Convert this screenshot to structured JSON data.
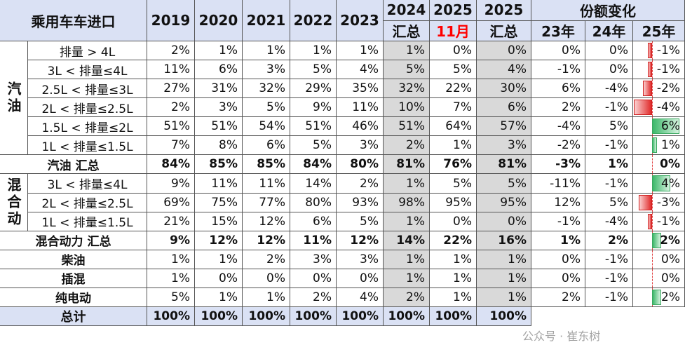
{
  "header": {
    "title": "乘用车车进口",
    "columns": [
      {
        "top": "2019"
      },
      {
        "top": "2020"
      },
      {
        "top": "2021"
      },
      {
        "top": "2022"
      },
      {
        "top": "2023"
      },
      {
        "top": "2024",
        "bottom": "汇总"
      },
      {
        "top": "2025",
        "bottom": "11月",
        "bottom_color": "#ff0000"
      },
      {
        "top": "2025",
        "bottom": "汇总"
      }
    ],
    "share_change": {
      "title": "份额变化",
      "years": [
        "23年",
        "24年",
        "25年"
      ]
    }
  },
  "rows": [
    {
      "group": "汽油",
      "items": [
        {
          "label": "排量 > 4L",
          "cells": [
            "2%",
            "1%",
            "1%",
            "1%",
            "1%",
            "1%",
            "0%",
            "0%",
            "0%",
            "0%",
            "-1%"
          ]
        },
        {
          "label": "3L < 排量≤4L",
          "cells": [
            "11%",
            "6%",
            "3%",
            "5%",
            "4%",
            "5%",
            "5%",
            "4%",
            "-1%",
            "0%",
            "-1%"
          ]
        },
        {
          "label": "2.5L < 排量≤3L",
          "cells": [
            "27%",
            "31%",
            "32%",
            "29%",
            "35%",
            "32%",
            "22%",
            "30%",
            "6%",
            "-4%",
            "-2%"
          ]
        },
        {
          "label": "2L < 排量≤2.5L",
          "cells": [
            "2%",
            "3%",
            "5%",
            "9%",
            "11%",
            "10%",
            "7%",
            "6%",
            "2%",
            "-1%",
            "-4%"
          ]
        },
        {
          "label": "1.5L < 排量≤2L",
          "cells": [
            "51%",
            "51%",
            "54%",
            "51%",
            "46%",
            "51%",
            "64%",
            "57%",
            "-4%",
            "5%",
            "6%"
          ]
        },
        {
          "label": "1L < 排量≤1.5L",
          "cells": [
            "7%",
            "8%",
            "6%",
            "5%",
            "3%",
            "2%",
            "1%",
            "3%",
            "-2%",
            "-1%",
            "1%"
          ]
        }
      ]
    },
    {
      "label": "汽油 汇总",
      "bold": true,
      "cells": [
        "84%",
        "85%",
        "85%",
        "84%",
        "80%",
        "81%",
        "76%",
        "81%",
        "-3%",
        "1%",
        "0%"
      ]
    },
    {
      "group": "混合动",
      "items": [
        {
          "label": "3L < 排量≤4L",
          "cells": [
            "9%",
            "11%",
            "11%",
            "14%",
            "2%",
            "1%",
            "5%",
            "5%",
            "-11%",
            "-1%",
            "4%"
          ]
        },
        {
          "label": "2L < 排量≤2.5L",
          "cells": [
            "69%",
            "75%",
            "77%",
            "80%",
            "93%",
            "98%",
            "95%",
            "95%",
            "12%",
            "5%",
            "-3%"
          ]
        },
        {
          "label": "1L < 排量≤1.5L",
          "cells": [
            "21%",
            "15%",
            "12%",
            "6%",
            "5%",
            "1%",
            "0%",
            "0%",
            "-1%",
            "-4%",
            "-1%"
          ]
        }
      ]
    },
    {
      "label": "混合动力 汇总",
      "bold": true,
      "cells": [
        "9%",
        "12%",
        "12%",
        "11%",
        "12%",
        "14%",
        "22%",
        "16%",
        "1%",
        "2%",
        "2%"
      ]
    },
    {
      "label": "柴油",
      "cells": [
        "1%",
        "1%",
        "2%",
        "3%",
        "3%",
        "1%",
        "1%",
        "1%",
        "0%",
        "-1%",
        "0%"
      ]
    },
    {
      "label": "插混",
      "cells": [
        "1%",
        "0%",
        "0%",
        "0%",
        "0%",
        "1%",
        "1%",
        "1%",
        "0%",
        "-1%",
        "0%"
      ]
    },
    {
      "label": "纯电动",
      "cells": [
        "5%",
        "1%",
        "1%",
        "2%",
        "4%",
        "2%",
        "1%",
        "1%",
        "2%",
        "-1%",
        "2%"
      ]
    },
    {
      "label": "总计",
      "bold": true,
      "total": true,
      "cells": [
        "100%",
        "100%",
        "100%",
        "100%",
        "100%",
        "100%",
        "100%",
        "100%"
      ]
    }
  ],
  "watermark": "公众号 · 崔东树"
}
